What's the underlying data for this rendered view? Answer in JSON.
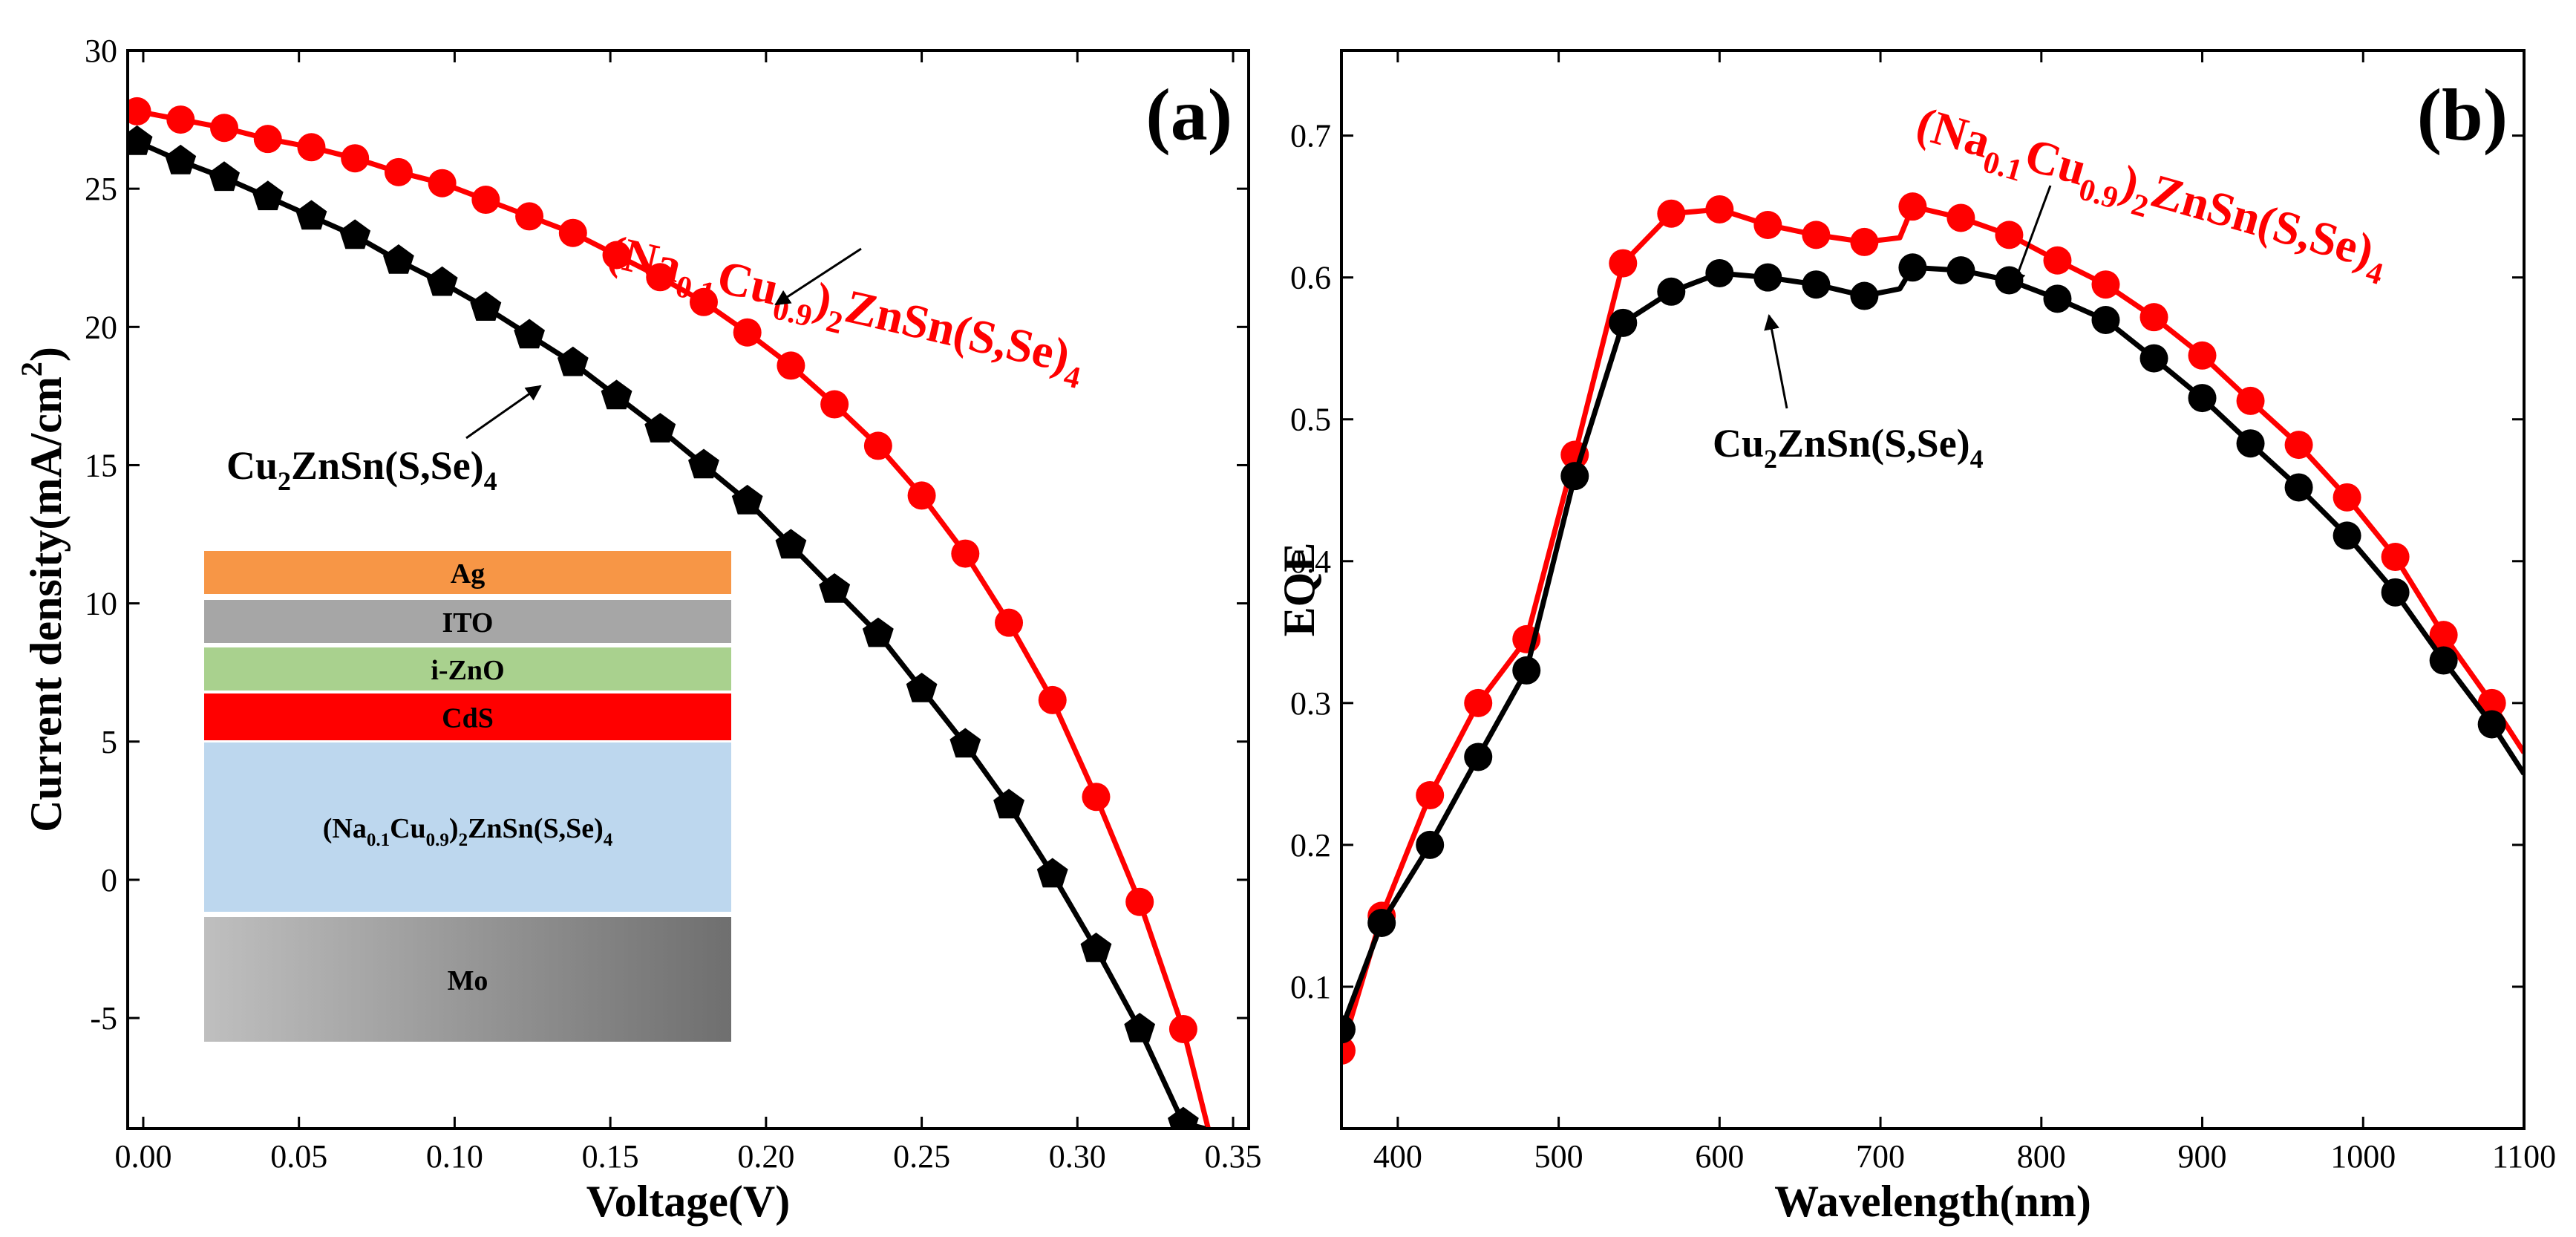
{
  "chart_data": [
    {
      "type": "line",
      "panel_label": "(a)",
      "xlabel": "Voltage(V)",
      "ylabel": "Current density(mA/cm",
      "ylabel_sup": "2",
      "ylabel_end": ")",
      "xlim": [
        -0.005,
        0.355
      ],
      "ylim": [
        -9,
        30
      ],
      "xticks": [
        0.0,
        0.05,
        0.1,
        0.15,
        0.2,
        0.25,
        0.3,
        0.35
      ],
      "xtick_labels": [
        "0.00",
        "0.05",
        "0.10",
        "0.15",
        "0.20",
        "0.25",
        "0.30",
        "0.35"
      ],
      "yticks": [
        -5,
        0,
        5,
        10,
        15,
        20,
        25,
        30
      ],
      "ytick_labels": [
        "-5",
        "0",
        "5",
        "10",
        "15",
        "20",
        "25",
        "30"
      ],
      "series": [
        {
          "name": "(Na0.1Cu0.9)2ZnSn(S,Se)4",
          "color": "#ff0000",
          "marker": "circle",
          "x": [
            -0.002,
            0.012,
            0.026,
            0.04,
            0.054,
            0.068,
            0.082,
            0.096,
            0.11,
            0.124,
            0.138,
            0.152,
            0.166,
            0.18,
            0.194,
            0.208,
            0.222,
            0.236,
            0.25,
            0.264,
            0.278,
            0.292,
            0.306,
            0.32,
            0.334,
            0.342
          ],
          "y": [
            27.8,
            27.5,
            27.2,
            26.8,
            26.5,
            26.1,
            25.6,
            25.2,
            24.6,
            24.0,
            23.4,
            22.6,
            21.8,
            20.9,
            19.8,
            18.6,
            17.2,
            15.7,
            13.9,
            11.8,
            9.3,
            6.5,
            3.0,
            -0.8,
            -5.4,
            -9.0
          ],
          "markers_until": 24,
          "label_parts": [
            {
              "t": "(Na",
              "sub": false
            },
            {
              "t": "0.1",
              "sub": true
            },
            {
              "t": "Cu",
              "sub": false
            },
            {
              "t": "0.9",
              "sub": true
            },
            {
              "t": ")",
              "sub": false
            },
            {
              "t": "2",
              "sub": true
            },
            {
              "t": "ZnSn(S,Se)",
              "sub": false
            },
            {
              "t": "4",
              "sub": true
            }
          ]
        },
        {
          "name": "Cu2ZnSn(S,Se)4",
          "color": "#000000",
          "marker": "pentagon",
          "x": [
            -0.002,
            0.012,
            0.026,
            0.04,
            0.054,
            0.068,
            0.082,
            0.096,
            0.11,
            0.124,
            0.138,
            0.152,
            0.166,
            0.18,
            0.194,
            0.208,
            0.222,
            0.236,
            0.25,
            0.264,
            0.278,
            0.292,
            0.306,
            0.32,
            0.334,
            0.341
          ],
          "y": [
            26.7,
            26.0,
            25.4,
            24.7,
            24.0,
            23.3,
            22.4,
            21.6,
            20.7,
            19.7,
            18.7,
            17.5,
            16.3,
            15.0,
            13.7,
            12.1,
            10.5,
            8.9,
            6.9,
            4.9,
            2.7,
            0.2,
            -2.5,
            -5.4,
            -8.8,
            -9.0
          ],
          "markers_until": 24,
          "label_parts": [
            {
              "t": "Cu",
              "sub": false
            },
            {
              "t": "2",
              "sub": true
            },
            {
              "t": "ZnSn(S,Se)",
              "sub": false
            },
            {
              "t": "4",
              "sub": true
            }
          ]
        }
      ],
      "inset_layers": [
        {
          "name": "Ag",
          "color": "#f79646"
        },
        {
          "name": "ITO",
          "color": "#a6a6a6"
        },
        {
          "name": "i-ZnO",
          "color": "#a9d18e"
        },
        {
          "name": "CdS",
          "color": "#ff0000"
        },
        {
          "name": "(Na0.1Cu0.9)2ZnSn(S,Se)4",
          "color": "#bdd7ee",
          "parts": [
            {
              "t": "(Na",
              "sub": false
            },
            {
              "t": "0.1",
              "sub": true
            },
            {
              "t": "Cu",
              "sub": false
            },
            {
              "t": "0.9",
              "sub": true
            },
            {
              "t": ")",
              "sub": false
            },
            {
              "t": "2",
              "sub": true
            },
            {
              "t": "ZnSn(S,Se)",
              "sub": false
            },
            {
              "t": "4",
              "sub": true
            }
          ]
        },
        {
          "name": "Mo",
          "color": "#8c8c8c"
        }
      ]
    },
    {
      "type": "line",
      "panel_label": "(b)",
      "xlabel": "Wavelength(nm)",
      "ylabel": "EQE",
      "xlim": [
        365,
        1100
      ],
      "ylim": [
        0.0,
        0.76
      ],
      "xticks": [
        400,
        500,
        600,
        700,
        800,
        900,
        1000,
        1100
      ],
      "xtick_labels": [
        "400",
        "500",
        "600",
        "700",
        "800",
        "900",
        "1000",
        "1100"
      ],
      "yticks": [
        0.1,
        0.2,
        0.3,
        0.4,
        0.5,
        0.6,
        0.7
      ],
      "ytick_labels": [
        "0.1",
        "0.2",
        "0.3",
        "0.4",
        "0.5",
        "0.6",
        "0.7"
      ],
      "series": [
        {
          "name": "(Na0.1Cu0.9)2ZnSn(S,Se)4",
          "color": "#ff0000",
          "marker": "circle",
          "x": [
            365,
            390,
            420,
            450,
            480,
            510,
            540,
            570,
            600,
            630,
            660,
            690,
            712,
            720,
            750,
            780,
            810,
            840,
            870,
            900,
            930,
            960,
            990,
            1020,
            1050,
            1080,
            1100
          ],
          "y": [
            0.055,
            0.15,
            0.235,
            0.3,
            0.345,
            0.475,
            0.61,
            0.645,
            0.648,
            0.637,
            0.63,
            0.625,
            0.628,
            0.65,
            0.642,
            0.63,
            0.612,
            0.595,
            0.572,
            0.545,
            0.513,
            0.482,
            0.445,
            0.403,
            0.348,
            0.3,
            0.265
          ],
          "marker_skip": [
            12,
            26
          ],
          "label_parts": [
            {
              "t": "(Na",
              "sub": false
            },
            {
              "t": "0.1",
              "sub": true
            },
            {
              "t": "Cu",
              "sub": false
            },
            {
              "t": "0.9",
              "sub": true
            },
            {
              "t": ")",
              "sub": false
            },
            {
              "t": "2",
              "sub": true
            },
            {
              "t": "ZnSn(S,Se)",
              "sub": false
            },
            {
              "t": "4",
              "sub": true
            }
          ]
        },
        {
          "name": "Cu2ZnSn(S,Se)4",
          "color": "#000000",
          "marker": "circle",
          "x": [
            365,
            390,
            420,
            450,
            480,
            510,
            540,
            570,
            600,
            630,
            660,
            690,
            712,
            720,
            750,
            780,
            810,
            840,
            870,
            900,
            930,
            960,
            990,
            1020,
            1050,
            1080,
            1100
          ],
          "y": [
            0.07,
            0.145,
            0.2,
            0.262,
            0.323,
            0.46,
            0.568,
            0.59,
            0.603,
            0.6,
            0.595,
            0.587,
            0.592,
            0.607,
            0.605,
            0.598,
            0.585,
            0.57,
            0.543,
            0.515,
            0.483,
            0.452,
            0.418,
            0.378,
            0.33,
            0.285,
            0.25
          ],
          "marker_skip": [
            12,
            26
          ],
          "label_parts": [
            {
              "t": "Cu",
              "sub": false
            },
            {
              "t": "2",
              "sub": true
            },
            {
              "t": "ZnSn(S,Se)",
              "sub": false
            },
            {
              "t": "4",
              "sub": true
            }
          ]
        }
      ]
    }
  ]
}
